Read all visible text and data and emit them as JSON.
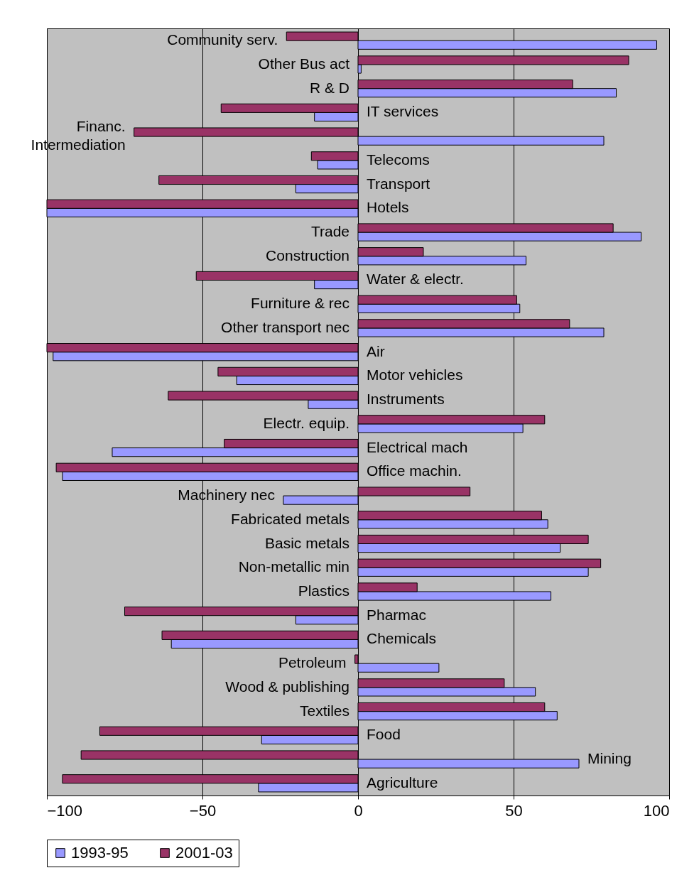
{
  "chart_data": {
    "type": "bar",
    "orientation": "horizontal",
    "categories": [
      "Community serv.",
      "Other Bus act",
      "R & D",
      "IT services",
      "Financ. Intermediation",
      "Telecoms",
      "Transport",
      "Hotels",
      "Trade",
      "Construction",
      "Water & electr.",
      "Furniture & rec",
      "Other transport nec",
      "Air",
      "Motor vehicles",
      "Instruments",
      "Electr. equip.",
      "Electrical mach",
      "Office machin.",
      "Machinery nec",
      "Fabricated metals",
      "Basic metals",
      "Non-metallic min",
      "Plastics",
      "Pharmac",
      "Chemicals",
      "Petroleum",
      "Wood & publishing",
      "Textiles",
      "Food",
      "Mining",
      "Agriculture"
    ],
    "series": [
      {
        "name": "1993-95",
        "color": "#9999ff",
        "values": [
          96,
          1,
          83,
          -14,
          79,
          -13,
          -20,
          -100,
          91,
          54,
          -14,
          52,
          79,
          -98,
          -39,
          -16,
          53,
          -79,
          -95,
          -24,
          61,
          65,
          74,
          62,
          -20,
          -60,
          26,
          57,
          64,
          -31,
          71,
          -32
        ]
      },
      {
        "name": "2001-03",
        "color": "#993366",
        "values": [
          -23,
          87,
          69,
          -44,
          -72,
          -15,
          -64,
          -100,
          82,
          21,
          -52,
          51,
          68,
          -100,
          -45,
          -61,
          60,
          -43,
          -97,
          36,
          59,
          74,
          78,
          19,
          -75,
          -63,
          -1,
          47,
          60,
          -83,
          -89,
          -95
        ]
      }
    ],
    "xlim": [
      -100,
      100
    ],
    "xticks": [
      -100,
      -50,
      0,
      50,
      100
    ],
    "grid": "x",
    "legend": "bottom"
  }
}
